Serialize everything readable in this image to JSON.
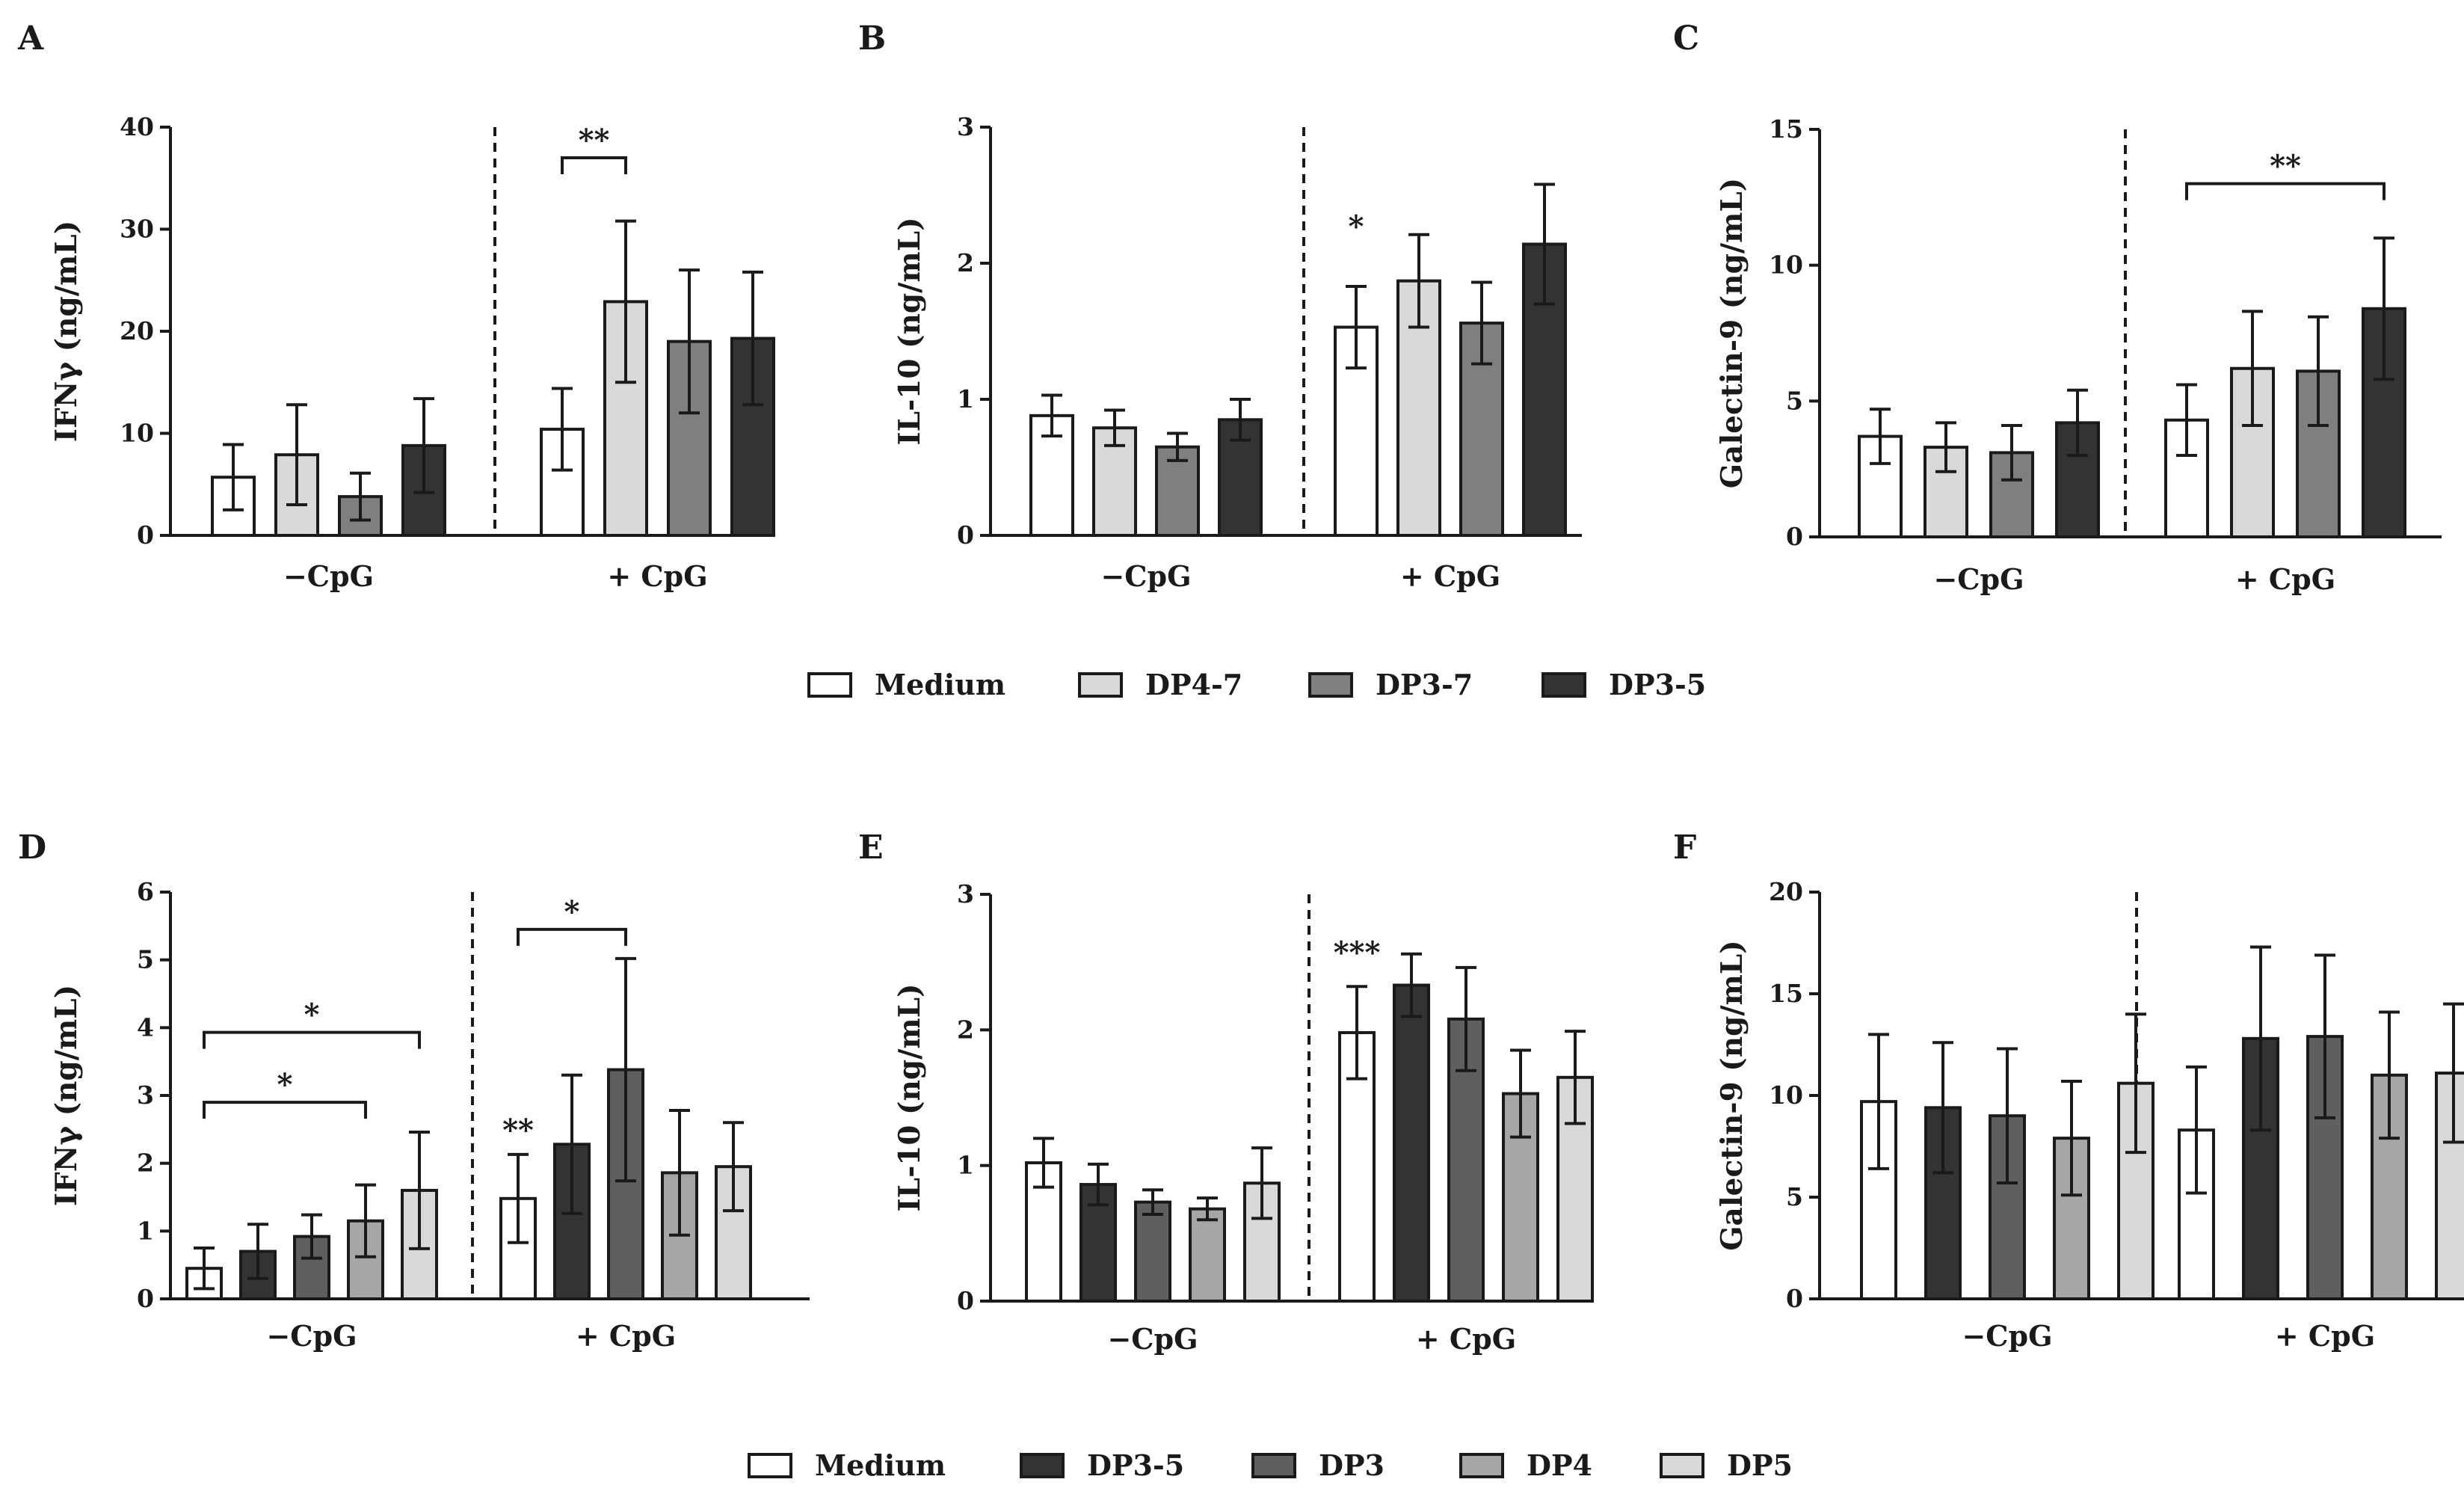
{
  "figure_title": "",
  "legend_top": {
    "items": [
      {
        "label": "Medium",
        "color": "#ffffff"
      },
      {
        "label": "DP4-7",
        "color": "#d9d9d9"
      },
      {
        "label": "DP3-7",
        "color": "#7f7f7f"
      },
      {
        "label": "DP3-5",
        "color": "#333333"
      }
    ]
  },
  "legend_bottom": {
    "items": [
      {
        "label": "Medium",
        "color": "#ffffff"
      },
      {
        "label": "DP3-5",
        "color": "#333333"
      },
      {
        "label": "DP3",
        "color": "#5f5f5f"
      },
      {
        "label": "DP4",
        "color": "#a6a6a6"
      },
      {
        "label": "DP5",
        "color": "#d9d9d9"
      }
    ]
  },
  "chart_data": [
    {
      "panel": "A",
      "type": "bar",
      "ylabel": "IFNγ (ng/mL)",
      "ylim": [
        0,
        40
      ],
      "yticks": [
        0,
        10,
        20,
        30,
        40
      ],
      "groups": [
        "−CpG",
        "+ CpG"
      ],
      "series": [
        {
          "name": "Medium",
          "color": "#ffffff",
          "values": [
            5.7,
            10.4
          ],
          "errors": [
            3.2,
            4.0
          ]
        },
        {
          "name": "DP4-7",
          "color": "#d9d9d9",
          "values": [
            7.9,
            22.9
          ],
          "errors": [
            4.9,
            7.9
          ]
        },
        {
          "name": "DP3-7",
          "color": "#7f7f7f",
          "values": [
            3.8,
            19.0
          ],
          "errors": [
            2.3,
            7.0
          ]
        },
        {
          "name": "DP3-5",
          "color": "#333333",
          "values": [
            8.8,
            19.3
          ],
          "errors": [
            4.6,
            6.5
          ]
        }
      ],
      "annotations": [
        {
          "text": "**",
          "group": 1,
          "from": 0,
          "to": 1,
          "y": 37.0
        }
      ]
    },
    {
      "panel": "B",
      "type": "bar",
      "ylabel": "IL-10 (ng/mL)",
      "ylim": [
        0,
        3
      ],
      "yticks": [
        0,
        1,
        2,
        3
      ],
      "groups": [
        "−CpG",
        "+ CpG"
      ],
      "series": [
        {
          "name": "Medium",
          "color": "#ffffff",
          "values": [
            0.88,
            1.53
          ],
          "errors": [
            0.15,
            0.3
          ]
        },
        {
          "name": "DP4-7",
          "color": "#d9d9d9",
          "values": [
            0.79,
            1.87
          ],
          "errors": [
            0.13,
            0.34
          ]
        },
        {
          "name": "DP3-7",
          "color": "#7f7f7f",
          "values": [
            0.65,
            1.56
          ],
          "errors": [
            0.1,
            0.3
          ]
        },
        {
          "name": "DP3-5",
          "color": "#333333",
          "values": [
            0.85,
            2.14
          ],
          "errors": [
            0.15,
            0.44
          ]
        }
      ],
      "annotations": [
        {
          "text": "*",
          "group": 1,
          "bar": 0,
          "y": 2.25
        }
      ]
    },
    {
      "panel": "C",
      "type": "bar",
      "ylabel": "Galectin-9 (ng/mL)",
      "ylim": [
        0,
        15
      ],
      "yticks": [
        0,
        5,
        10,
        15
      ],
      "groups": [
        "−CpG",
        "+ CpG"
      ],
      "series": [
        {
          "name": "Medium",
          "color": "#ffffff",
          "values": [
            3.7,
            4.3
          ],
          "errors": [
            1.0,
            1.3
          ]
        },
        {
          "name": "DP4-7",
          "color": "#d9d9d9",
          "values": [
            3.3,
            6.2
          ],
          "errors": [
            0.9,
            2.1
          ]
        },
        {
          "name": "DP3-7",
          "color": "#7f7f7f",
          "values": [
            3.1,
            6.1
          ],
          "errors": [
            1.0,
            2.0
          ]
        },
        {
          "name": "DP3-5",
          "color": "#333333",
          "values": [
            4.2,
            8.4
          ],
          "errors": [
            1.2,
            2.6
          ]
        }
      ],
      "annotations": [
        {
          "text": "**",
          "group": 1,
          "from": 0,
          "to": 3,
          "y": 13.0
        }
      ]
    },
    {
      "panel": "D",
      "type": "bar",
      "ylabel": "IFNγ (ng/mL)",
      "ylim": [
        0,
        6
      ],
      "yticks": [
        0,
        1,
        2,
        3,
        4,
        5,
        6
      ],
      "groups": [
        "−CpG",
        "+ CpG"
      ],
      "series": [
        {
          "name": "Medium",
          "color": "#ffffff",
          "values": [
            0.45,
            1.48
          ],
          "errors": [
            0.3,
            0.65
          ]
        },
        {
          "name": "DP3-5",
          "color": "#333333",
          "values": [
            0.7,
            2.28
          ],
          "errors": [
            0.4,
            1.02
          ]
        },
        {
          "name": "DP3",
          "color": "#5f5f5f",
          "values": [
            0.92,
            3.38
          ],
          "errors": [
            0.32,
            1.64
          ]
        },
        {
          "name": "DP4",
          "color": "#a6a6a6",
          "values": [
            1.15,
            1.86
          ],
          "errors": [
            0.53,
            0.92
          ]
        },
        {
          "name": "DP5",
          "color": "#d9d9d9",
          "values": [
            1.6,
            1.95
          ],
          "errors": [
            0.86,
            0.65
          ]
        }
      ],
      "annotations": [
        {
          "text": "*",
          "group": 0,
          "from": 0,
          "to": 4,
          "y": 3.93
        },
        {
          "text": "*",
          "group": 0,
          "from": 0,
          "to": 3,
          "y": 2.9
        },
        {
          "text": "*",
          "group": 1,
          "from": 0,
          "to": 2,
          "y": 5.45
        },
        {
          "text": "**",
          "group": 1,
          "bar": 0,
          "y": 2.45
        }
      ]
    },
    {
      "panel": "E",
      "type": "bar",
      "ylabel": "IL-10 (ng/mL)",
      "ylim": [
        0,
        3
      ],
      "yticks": [
        0,
        1,
        2,
        3
      ],
      "groups": [
        "−CpG",
        "+ CpG"
      ],
      "series": [
        {
          "name": "Medium",
          "color": "#ffffff",
          "values": [
            1.02,
            1.98
          ],
          "errors": [
            0.18,
            0.34
          ]
        },
        {
          "name": "DP3-5",
          "color": "#333333",
          "values": [
            0.86,
            2.33
          ],
          "errors": [
            0.15,
            0.23
          ]
        },
        {
          "name": "DP3",
          "color": "#5f5f5f",
          "values": [
            0.73,
            2.08
          ],
          "errors": [
            0.09,
            0.38
          ]
        },
        {
          "name": "DP4",
          "color": "#a6a6a6",
          "values": [
            0.68,
            1.53
          ],
          "errors": [
            0.08,
            0.32
          ]
        },
        {
          "name": "DP5",
          "color": "#d9d9d9",
          "values": [
            0.87,
            1.65
          ],
          "errors": [
            0.26,
            0.34
          ]
        }
      ],
      "annotations": [
        {
          "text": "***",
          "group": 1,
          "bar": 0,
          "y": 2.55
        }
      ]
    },
    {
      "panel": "F",
      "type": "bar",
      "ylabel": "Galectin-9 (ng/mL)",
      "ylim": [
        0,
        20
      ],
      "yticks": [
        0,
        5,
        10,
        15,
        20
      ],
      "groups": [
        "−CpG",
        "+ CpG"
      ],
      "series": [
        {
          "name": "Medium",
          "color": "#ffffff",
          "values": [
            9.7,
            8.3
          ],
          "errors": [
            3.3,
            3.1
          ]
        },
        {
          "name": "DP3-5",
          "color": "#333333",
          "values": [
            9.4,
            12.8
          ],
          "errors": [
            3.2,
            4.5
          ]
        },
        {
          "name": "DP3",
          "color": "#5f5f5f",
          "values": [
            9.0,
            12.9
          ],
          "errors": [
            3.3,
            4.0
          ]
        },
        {
          "name": "DP4",
          "color": "#a6a6a6",
          "values": [
            7.9,
            11.0
          ],
          "errors": [
            2.8,
            3.1
          ]
        },
        {
          "name": "DP5",
          "color": "#d9d9d9",
          "values": [
            10.6,
            11.1
          ],
          "errors": [
            3.4,
            3.4
          ]
        }
      ],
      "annotations": []
    }
  ]
}
